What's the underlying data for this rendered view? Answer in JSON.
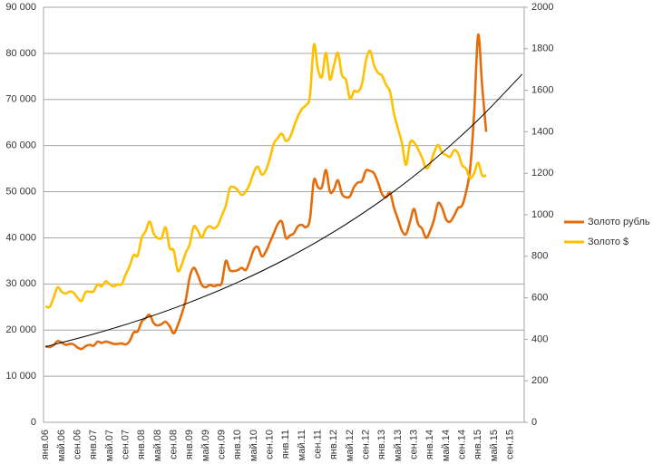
{
  "chart_data": {
    "type": "line",
    "categories": [
      "янв.06",
      null,
      null,
      null,
      "май.06",
      null,
      null,
      null,
      "сен.06",
      null,
      null,
      null,
      "янв.07",
      null,
      null,
      null,
      "май.07",
      null,
      null,
      null,
      "сен.07",
      null,
      null,
      null,
      "янв.08",
      null,
      null,
      null,
      "май.08",
      null,
      null,
      null,
      "сен.08",
      null,
      null,
      null,
      "янв.09",
      null,
      null,
      null,
      "май.09",
      null,
      null,
      null,
      "сен.09",
      null,
      null,
      null,
      "янв.10",
      null,
      null,
      null,
      "май.10",
      null,
      null,
      null,
      "сен.10",
      null,
      null,
      null,
      "янв.11",
      null,
      null,
      null,
      "май.11",
      null,
      null,
      null,
      "сен.11",
      null,
      null,
      null,
      "янв.12",
      null,
      null,
      null,
      "май.12",
      null,
      null,
      null,
      "сен.12",
      null,
      null,
      null,
      "янв.13",
      null,
      null,
      null,
      "май.13",
      null,
      null,
      null,
      "сен.13",
      null,
      null,
      null,
      "янв.14",
      null,
      null,
      null,
      "май.14",
      null,
      null,
      null,
      "сен.14",
      null,
      null,
      null,
      "янв.15",
      null,
      null,
      null,
      "май.15",
      null,
      null,
      null,
      "сен.15",
      null,
      null,
      null
    ],
    "series": [
      {
        "name": "Золото рубль",
        "color": "#e46c0a",
        "axis": "y",
        "values": [
          16500,
          16300,
          16700,
          17600,
          17300,
          16800,
          17000,
          16900,
          16200,
          15900,
          16500,
          16800,
          16600,
          17500,
          17200,
          17500,
          17300,
          17000,
          17000,
          17100,
          16900,
          17600,
          19500,
          19700,
          21800,
          22600,
          23300,
          21500,
          21000,
          21300,
          21800,
          20800,
          19300,
          21000,
          23500,
          26500,
          31500,
          33500,
          32000,
          29800,
          29300,
          29800,
          29500,
          29800,
          30200,
          35000,
          33000,
          32800,
          33000,
          33500,
          33000,
          35000,
          37500,
          38000,
          36000,
          37000,
          39000,
          41000,
          43000,
          43500,
          40000,
          40500,
          41000,
          42500,
          42800,
          42300,
          44000,
          52500,
          51000,
          51000,
          54700,
          50000,
          50500,
          52500,
          49500,
          48800,
          49000,
          51000,
          52000,
          52300,
          54600,
          54500,
          54000,
          52000,
          49500,
          48800,
          49800,
          46500,
          44000,
          41500,
          40800,
          43500,
          46300,
          43000,
          42000,
          40000,
          41500,
          44000,
          47500,
          46500,
          44000,
          43500,
          44800,
          46500,
          47000,
          50000,
          55000,
          67000,
          84000,
          73000,
          63000,
          null,
          null,
          null,
          null,
          null,
          null,
          null,
          null,
          null
        ]
      },
      {
        "name": "Золото $",
        "color": "#ffc000",
        "axis": "y2",
        "values": [
          560,
          555,
          600,
          650,
          630,
          620,
          630,
          625,
          600,
          585,
          627,
          629,
          631,
          665,
          655,
          679,
          666,
          655,
          665,
          665,
          712,
          754,
          806,
          803,
          889,
          922,
          968,
          909,
          888,
          889,
          939,
          839,
          829,
          730,
          760,
          816,
          858,
          943,
          924,
          890,
          930,
          945,
          934,
          949,
          996,
          1043,
          1127,
          1134,
          1118,
          1095,
          1113,
          1149,
          1205,
          1232,
          1193,
          1215,
          1271,
          1343,
          1370,
          1391,
          1356,
          1372,
          1424,
          1474,
          1510,
          1528,
          1572,
          1820,
          1700,
          1665,
          1780,
          1652,
          1720,
          1780,
          1673,
          1650,
          1560,
          1596,
          1594,
          1630,
          1744,
          1790,
          1722,
          1684,
          1671,
          1627,
          1593,
          1487,
          1414,
          1343,
          1240,
          1348,
          1349,
          1316,
          1275,
          1225,
          1244,
          1300,
          1336,
          1299,
          1288,
          1279,
          1311,
          1296,
          1239,
          1222,
          1176,
          1201,
          1251,
          1190,
          1190,
          null,
          null,
          null,
          null,
          null,
          null,
          null,
          null,
          null
        ]
      }
    ],
    "trendline": {
      "color": "#000000",
      "x": [
        0,
        12,
        24,
        36,
        48,
        60,
        72,
        84,
        96,
        108,
        119
      ],
      "values": [
        16400,
        19130,
        22320,
        26030,
        30370,
        35420,
        41320,
        48200,
        56230,
        65590,
        75500
      ]
    },
    "ylim": [
      0,
      90000
    ],
    "yticks": [
      0,
      {
        "value": 10000,
        "label": "10 000"
      },
      {
        "value": 20000,
        "label": "20 000"
      },
      {
        "value": 30000,
        "label": "30 000"
      },
      {
        "value": 40000,
        "label": "40 000"
      },
      {
        "value": 50000,
        "label": "50 000"
      },
      {
        "value": 60000,
        "label": "60 000"
      },
      {
        "value": 70000,
        "label": "70 000"
      },
      {
        "value": 80000,
        "label": "80 000"
      },
      {
        "value": 90000,
        "label": "90 000"
      }
    ],
    "y2lim": [
      0,
      2000
    ],
    "y2ticks": [
      0,
      200,
      400,
      600,
      800,
      1000,
      1200,
      1400,
      1600,
      1800,
      2000
    ],
    "grid": true,
    "legend": "right"
  }
}
